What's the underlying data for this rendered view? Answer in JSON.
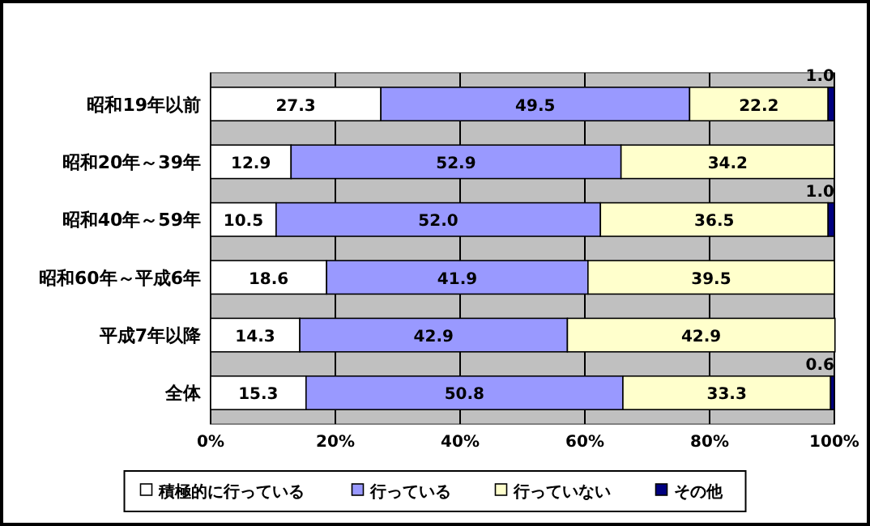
{
  "chart_data": {
    "type": "bar",
    "orientation": "horizontal",
    "stacked": true,
    "categories": [
      "昭和19年以前",
      "昭和20年～39年",
      "昭和40年～59年",
      "昭和60年～平成6年",
      "平成7年以降",
      "全体"
    ],
    "series": [
      {
        "name": "積極的に行っている",
        "color": "#ffffff",
        "values": [
          27.3,
          12.9,
          10.5,
          18.6,
          14.3,
          15.3
        ],
        "value_labels": [
          "27.3",
          "12.9",
          "10.5",
          "18.6",
          "14.3",
          "15.3"
        ]
      },
      {
        "name": "行っている",
        "color": "#9999ff",
        "values": [
          49.5,
          52.9,
          52.0,
          41.9,
          42.9,
          50.8
        ],
        "value_labels": [
          "49.5",
          "52.9",
          "52.0",
          "41.9",
          "42.9",
          "50.8"
        ]
      },
      {
        "name": "行っていない",
        "color": "#ffffcc",
        "values": [
          22.2,
          34.2,
          36.5,
          39.5,
          42.9,
          33.3
        ],
        "value_labels": [
          "22.2",
          "34.2",
          "36.5",
          "39.5",
          "42.9",
          "33.3"
        ]
      },
      {
        "name": "その他",
        "color": "#000080",
        "values": [
          1.0,
          0,
          1.0,
          0,
          0,
          0.6
        ],
        "value_labels": [
          "1.0",
          null,
          "1.0",
          null,
          null,
          "0.6"
        ]
      }
    ],
    "xlim": [
      0,
      100
    ],
    "xticks": [
      {
        "value": 0,
        "label": "0%"
      },
      {
        "value": 20,
        "label": "20%"
      },
      {
        "value": 40,
        "label": "40%"
      },
      {
        "value": 60,
        "label": "60%"
      },
      {
        "value": 80,
        "label": "80%"
      },
      {
        "value": 100,
        "label": "100%"
      }
    ],
    "grid": "x",
    "legend": "bottom"
  }
}
